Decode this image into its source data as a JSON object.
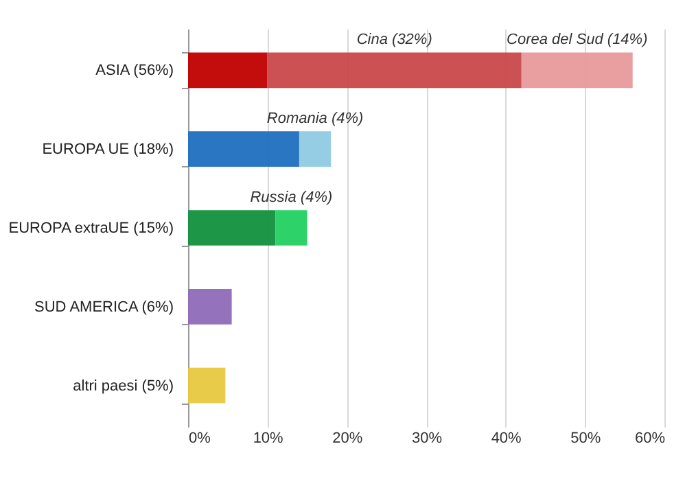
{
  "chart_data": {
    "type": "bar",
    "orientation": "horizontal",
    "stacked": true,
    "categories": [
      "ASIA (56%)",
      "EUROPA UE (18%)",
      "EUROPA extraUE (15%)",
      "SUD AMERICA (6%)",
      "altri paesi (5%)"
    ],
    "series": [
      {
        "colors": [
          "#c00000",
          "#1f6fc0",
          "#12903e",
          "#8e6bb8",
          "#e8c840"
        ],
        "values": [
          10,
          14,
          11,
          5.5,
          4.7
        ]
      },
      {
        "colors": [
          "#c9484a",
          "#8fcbe3",
          "#22d060",
          null,
          null
        ],
        "values": [
          32,
          4,
          4,
          null,
          null
        ],
        "value_labels": [
          "Cina (32%)",
          "Romania (4%)",
          "Russia (4%)",
          null,
          null
        ]
      },
      {
        "colors": [
          "#e89a9a",
          null,
          null,
          null,
          null
        ],
        "values": [
          14,
          null,
          null,
          null,
          null
        ],
        "value_labels": [
          "Corea del Sud (14%)",
          null,
          null,
          null,
          null
        ]
      }
    ],
    "xlim": [
      0,
      60
    ],
    "xticks": [
      {
        "value": 0,
        "label": "0%"
      },
      {
        "value": 10,
        "label": "10%"
      },
      {
        "value": 20,
        "label": "20%"
      },
      {
        "value": 30,
        "label": "30%"
      },
      {
        "value": 40,
        "label": "40%"
      },
      {
        "value": 50,
        "label": "50%"
      },
      {
        "value": 60,
        "label": "60%"
      }
    ],
    "grid": "x"
  }
}
